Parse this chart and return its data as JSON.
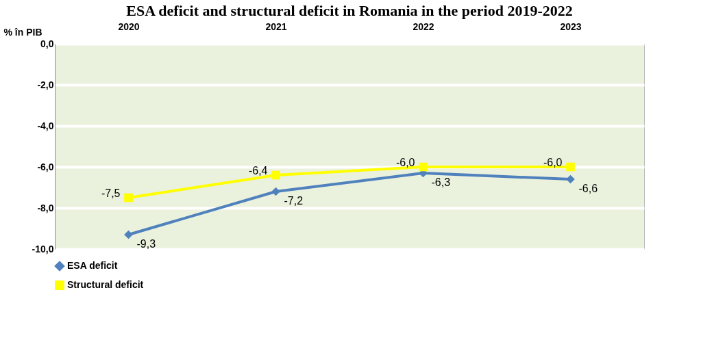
{
  "chart_data": {
    "type": "line",
    "title": "ESA deficit and structural deficit in Romania in the period 2019-2022",
    "ylabel": "% în PIB",
    "categories": [
      "2020",
      "2021",
      "2022",
      "2023"
    ],
    "series": [
      {
        "name": "ESA deficit",
        "color": "#4f81bd",
        "marker": "diamond",
        "values": [
          -9.3,
          -7.2,
          -6.3,
          -6.6
        ],
        "value_labels": [
          "-9,3",
          "-7,2",
          "-6,3",
          "-6,6"
        ]
      },
      {
        "name": "Structural deficit",
        "color": "#ffff00",
        "marker": "square",
        "values": [
          -7.5,
          -6.4,
          -6.0,
          -6.0
        ],
        "value_labels": [
          "-7,5",
          "-6,4",
          "-6,0",
          "-6,0"
        ]
      }
    ],
    "ylim": [
      -10,
      0
    ],
    "yticks": [
      {
        "value": 0,
        "label": "0,0"
      },
      {
        "value": -2,
        "label": "-2,0"
      },
      {
        "value": -4,
        "label": "-4,0"
      },
      {
        "value": -6,
        "label": "-6,0"
      },
      {
        "value": -8,
        "label": "-8,0"
      },
      {
        "value": -10,
        "label": "-10,0"
      }
    ],
    "grid": "y",
    "legend": "bottom",
    "line_style": "solid"
  }
}
